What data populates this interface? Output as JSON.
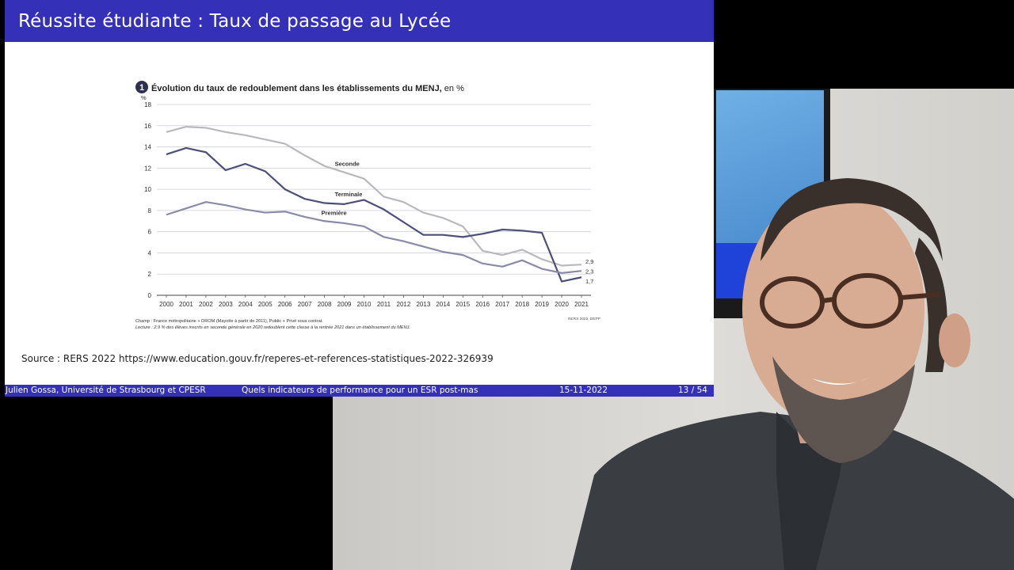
{
  "slide": {
    "title": "Réussite étudiante : Taux de passage au Lycée",
    "source": "Source : RERS 2022 https://www.education.gouv.fr/reperes-et-references-statistiques-2022-326939",
    "footer": {
      "author": "Julien Gossa, Université de Strasbourg et CPESR",
      "talk": "Quels indicateurs de performance pour un ESR post-mas",
      "date": "15-11-2022",
      "page": "13 / 54"
    }
  },
  "chart_data": {
    "type": "line",
    "figure_number": "1",
    "title": "Évolution du taux de redoublement dans les établissements du MENJ,",
    "title_suffix": " en %",
    "y_unit": "%",
    "ylim": [
      0,
      18
    ],
    "yticks": [
      0,
      2,
      4,
      6,
      8,
      10,
      12,
      14,
      16,
      18
    ],
    "grid": true,
    "x": [
      "2000",
      "2001",
      "2002",
      "2003",
      "2004",
      "2005",
      "2006",
      "2007",
      "2008",
      "2009",
      "2010",
      "2011",
      "2012",
      "2013",
      "2014",
      "2015",
      "2016",
      "2017",
      "2018",
      "2019",
      "2020",
      "2021"
    ],
    "series": [
      {
        "name": "Seconde",
        "color": "#b9b9bd",
        "values": [
          15.4,
          15.9,
          15.8,
          15.4,
          15.1,
          14.7,
          14.3,
          13.2,
          12.2,
          11.6,
          11.0,
          9.3,
          8.8,
          7.8,
          7.3,
          6.5,
          4.2,
          3.8,
          4.3,
          3.4,
          2.8,
          2.9
        ],
        "end_label": "2,9"
      },
      {
        "name": "Terminale",
        "color": "#4d4f78",
        "values": [
          13.3,
          13.9,
          13.5,
          11.8,
          12.4,
          11.7,
          10.0,
          9.1,
          8.7,
          8.6,
          9.0,
          8.1,
          6.9,
          5.7,
          5.7,
          5.5,
          5.8,
          6.2,
          6.1,
          5.9,
          1.3,
          1.7
        ],
        "end_label": "1,7"
      },
      {
        "name": "Première",
        "color": "#8a8ba8",
        "values": [
          7.6,
          8.2,
          8.8,
          8.5,
          8.1,
          7.8,
          7.9,
          7.4,
          7.0,
          6.8,
          6.5,
          5.5,
          5.1,
          4.6,
          4.1,
          3.8,
          3.0,
          2.7,
          3.3,
          2.5,
          2.1,
          2.3
        ],
        "end_label": "2,3"
      }
    ],
    "notes": {
      "champ": "Champ : France métropolitaine + DROM (Mayotte à partir de 2011), Public + Privé sous contrat.",
      "lecture": "Lecture : 2,9 % des élèves inscrits en seconde générale en 2020 redoublent cette classe à la rentrée 2021 dans un établissement du MENJ.",
      "ref": "RERS 2022, DEPP"
    }
  }
}
